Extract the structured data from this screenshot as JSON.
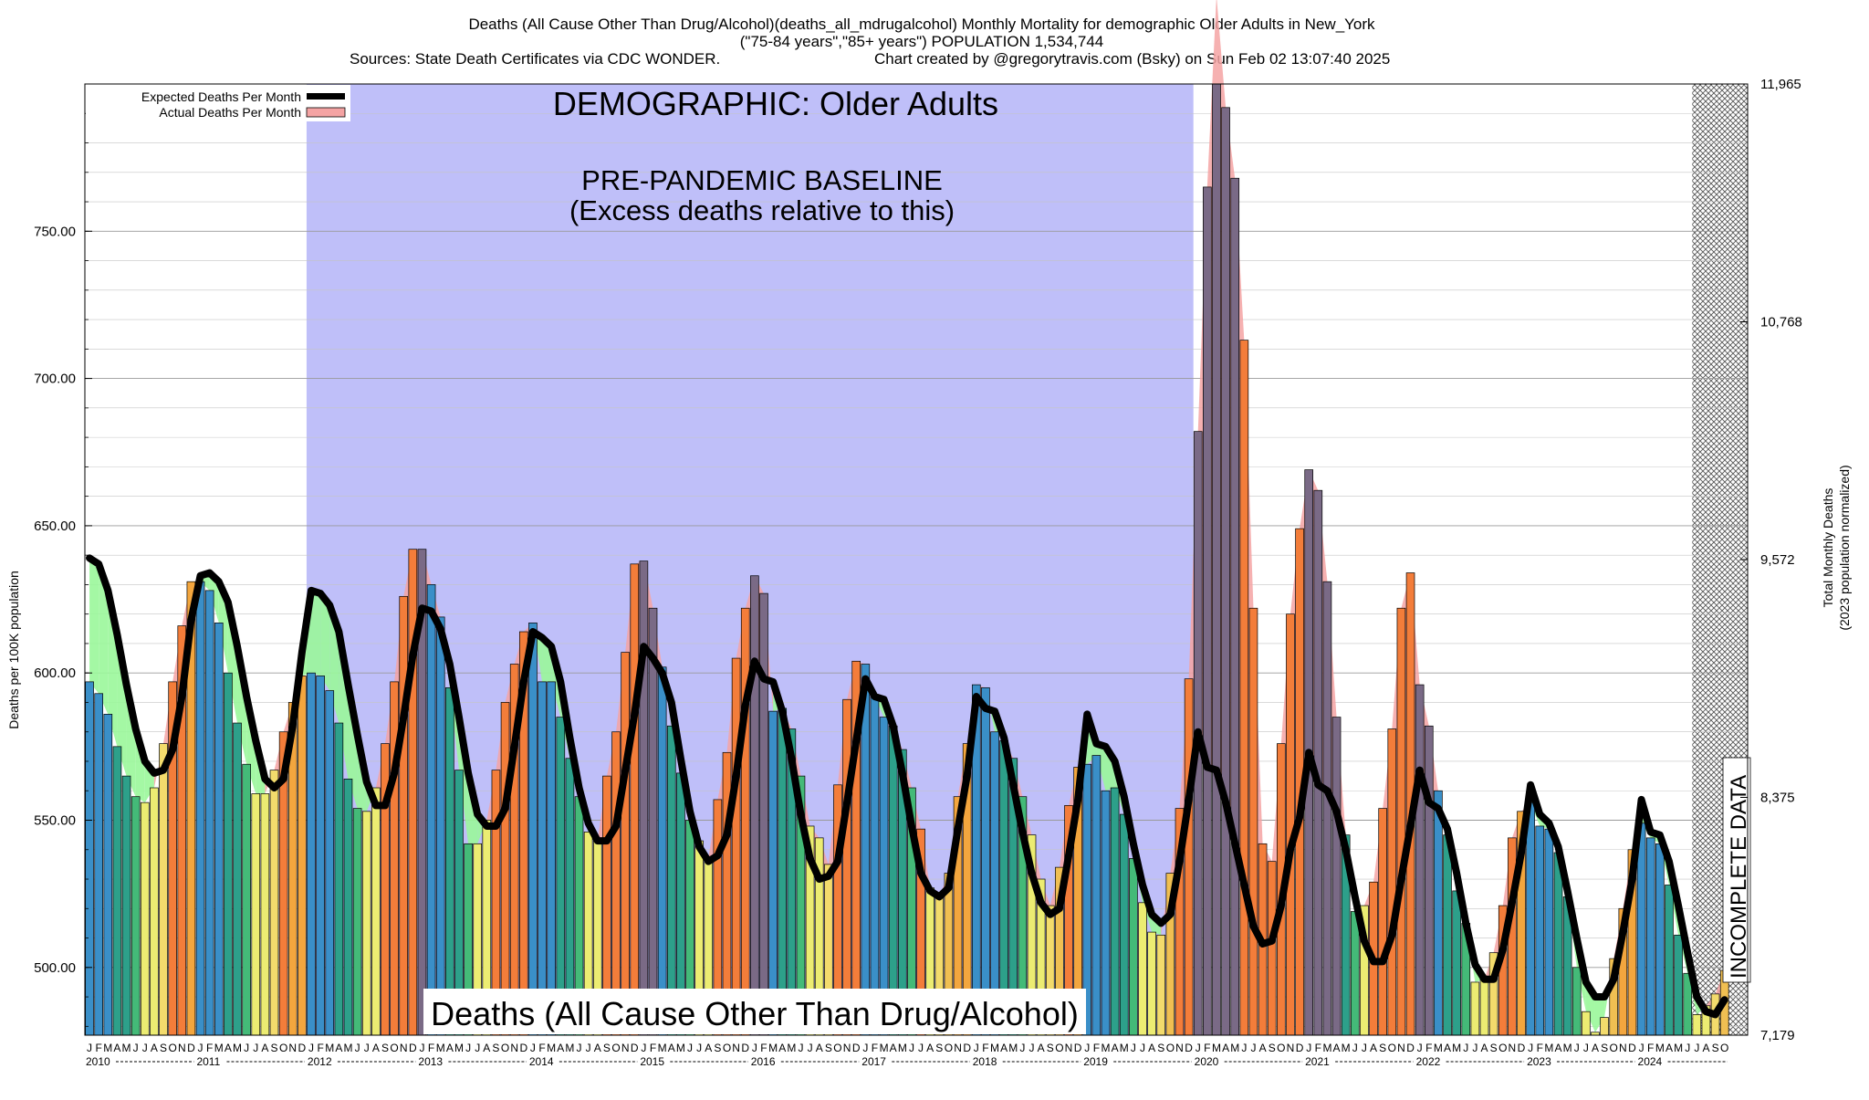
{
  "chart_data": {
    "type": "bar",
    "title_lines": [
      "Deaths (All Cause Other Than Drug/Alcohol)(deaths_all_mdrugalcohol) Monthly Mortality for demographic Older Adults in New_York",
      "(\"75-84 years\",\"85+ years\") POPULATION 1,534,744",
      "Sources: State Death Certificates via CDC WONDER.",
      "Chart created by @gregorytravis.com (Bsky) on Sun Feb 02 13:07:40 2025"
    ],
    "ylabel": "Deaths per 100K population",
    "y2label_lines": [
      "Total Monthly Deaths",
      "(2023 population normalized)"
    ],
    "ylim": [
      477,
      800
    ],
    "y_ticks": [
      "500.00",
      "550.00",
      "600.00",
      "650.00",
      "700.00",
      "750.00"
    ],
    "y2_ticks": [
      "7,179",
      "8,375",
      "9,572",
      "10,768",
      "11,965"
    ],
    "legend": {
      "position": "top-left",
      "entries": [
        "Expected Deaths Per Month",
        "Actual Deaths Per Month"
      ]
    },
    "annotations": {
      "demographic": "DEMOGRAPHIC: Older Adults",
      "baseline_line1": "PRE-PANDEMIC BASELINE",
      "baseline_line2": "(Excess deaths relative to this)",
      "bottom_label": "Deaths (All Cause Other Than Drug/Alcohol)",
      "incomplete": "INCOMPLETE DATA"
    },
    "baseline_period": [
      "2012-01",
      "2019-12"
    ],
    "month_letters": [
      "J",
      "F",
      "M",
      "A",
      "M",
      "J",
      "J",
      "A",
      "S",
      "O",
      "N",
      "D"
    ],
    "years": [
      "2010",
      "2011",
      "2012",
      "2013",
      "2014",
      "2015",
      "2016",
      "2017",
      "2018",
      "2019",
      "2020",
      "2021",
      "2022",
      "2023",
      "2024"
    ],
    "months_in_final_year": 10,
    "actual": [
      597,
      593,
      586,
      575,
      565,
      558,
      556,
      561,
      576,
      597,
      616,
      631,
      631,
      628,
      617,
      600,
      583,
      569,
      559,
      559,
      567,
      580,
      590,
      599,
      600,
      599,
      594,
      583,
      564,
      554,
      553,
      561,
      576,
      597,
      626,
      642,
      642,
      630,
      619,
      595,
      567,
      542,
      542,
      550,
      567,
      590,
      603,
      614,
      617,
      597,
      597,
      585,
      571,
      558,
      546,
      543,
      565,
      580,
      607,
      637,
      638,
      622,
      602,
      582,
      566,
      550,
      543,
      537,
      557,
      573,
      605,
      622,
      633,
      627,
      587,
      588,
      581,
      565,
      548,
      544,
      535,
      562,
      591,
      604,
      603,
      592,
      585,
      582,
      574,
      561,
      547,
      527,
      524,
      532,
      558,
      576,
      596,
      595,
      580,
      577,
      571,
      558,
      545,
      530,
      521,
      534,
      555,
      568,
      569,
      572,
      560,
      561,
      552,
      537,
      522,
      512,
      511,
      532,
      554,
      598,
      682,
      765,
      830,
      792,
      768,
      713,
      622,
      542,
      536,
      576,
      620,
      649,
      669,
      662,
      631,
      585,
      545,
      519,
      521,
      529,
      554,
      581,
      622,
      634,
      596,
      582,
      560,
      545,
      526,
      515,
      495,
      496,
      505,
      521,
      544,
      553,
      556,
      548,
      547,
      539,
      524,
      500,
      485,
      478,
      483,
      503,
      520,
      540,
      549,
      544,
      542,
      528,
      511,
      498,
      484,
      487,
      491,
      499
    ],
    "expected": [
      639,
      637,
      628,
      613,
      596,
      581,
      570,
      566,
      567,
      574,
      592,
      618,
      633,
      634,
      631,
      624,
      609,
      592,
      577,
      564,
      561,
      564,
      582,
      607,
      628,
      627,
      623,
      614,
      596,
      579,
      563,
      555,
      555,
      566,
      585,
      606,
      622,
      621,
      615,
      603,
      585,
      566,
      552,
      548,
      548,
      554,
      575,
      597,
      614,
      612,
      609,
      597,
      578,
      561,
      549,
      543,
      543,
      548,
      567,
      586,
      609,
      605,
      600,
      590,
      571,
      553,
      541,
      536,
      538,
      545,
      565,
      589,
      604,
      598,
      597,
      587,
      571,
      552,
      537,
      530,
      531,
      536,
      556,
      577,
      598,
      592,
      591,
      582,
      566,
      548,
      532,
      526,
      524,
      527,
      547,
      565,
      592,
      588,
      587,
      578,
      562,
      546,
      532,
      522,
      518,
      520,
      538,
      557,
      586,
      576,
      575,
      570,
      558,
      542,
      528,
      518,
      515,
      518,
      536,
      557,
      580,
      568,
      567,
      556,
      542,
      528,
      514,
      508,
      509,
      521,
      540,
      551,
      573,
      562,
      560,
      553,
      540,
      524,
      509,
      502,
      502,
      511,
      530,
      548,
      567,
      556,
      554,
      547,
      532,
      515,
      501,
      496,
      496,
      506,
      522,
      539,
      562,
      552,
      549,
      541,
      526,
      510,
      495,
      490,
      490,
      496,
      512,
      530,
      557,
      546,
      545,
      536,
      521,
      505,
      490,
      485,
      484,
      489
    ]
  }
}
